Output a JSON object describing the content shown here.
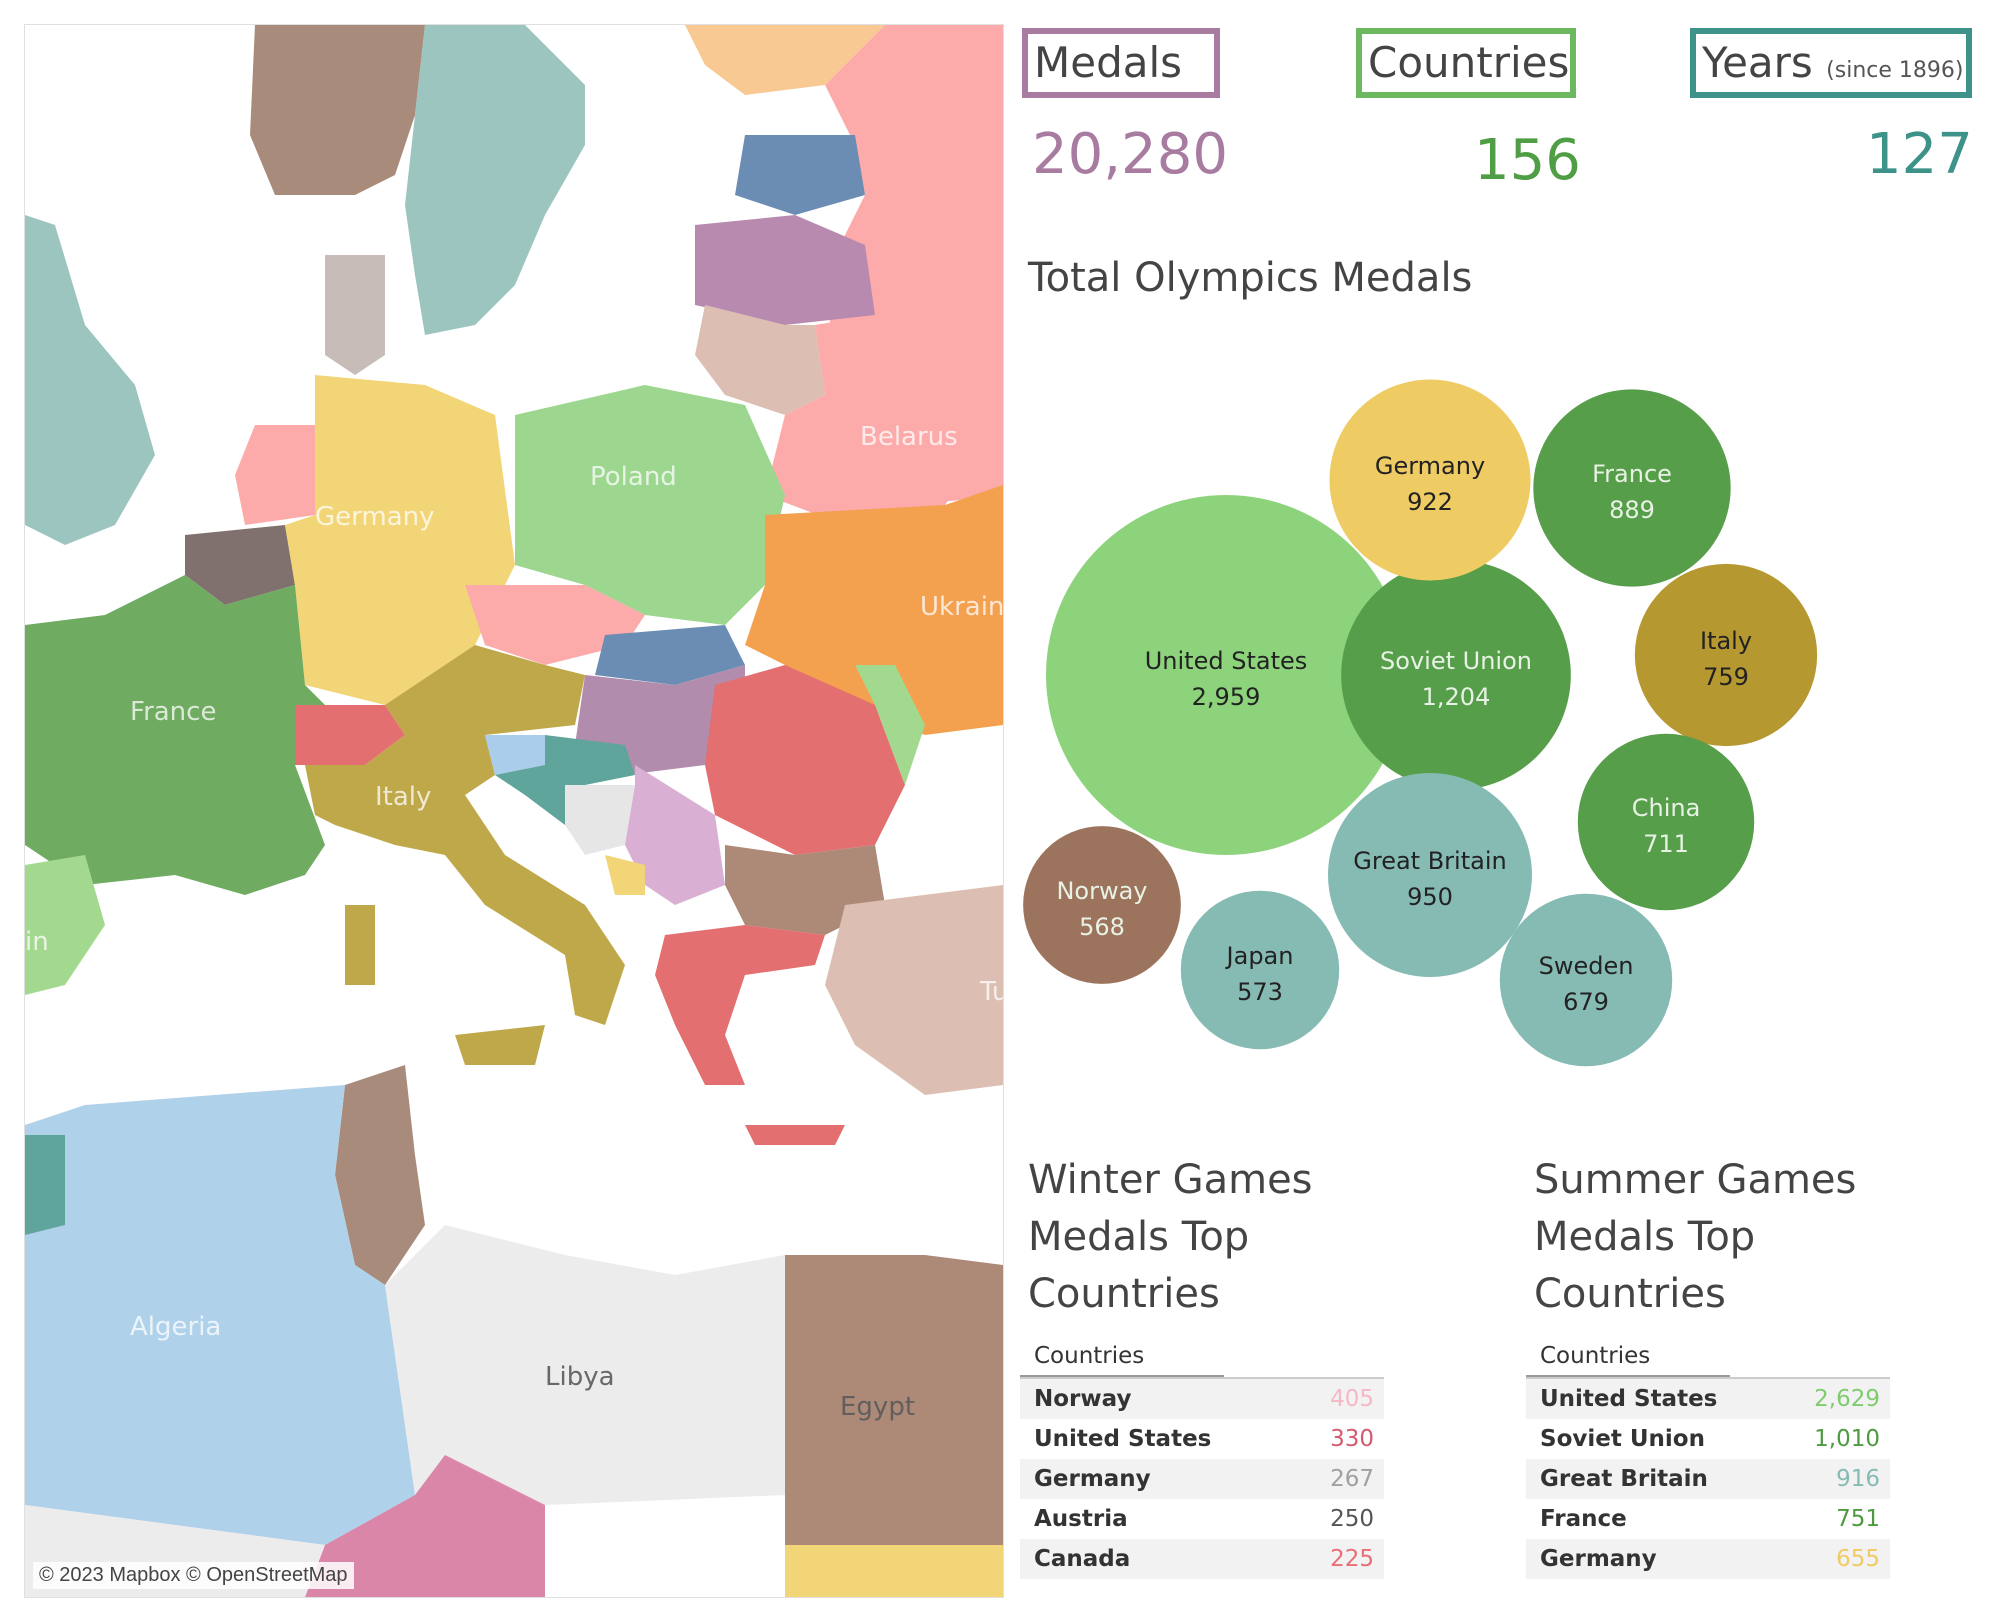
{
  "kpis": {
    "medals": {
      "label": "Medals",
      "value": "20,280",
      "color": "#a87ba0"
    },
    "countries": {
      "label": "Countries",
      "value": "156",
      "color": "#6bb85f"
    },
    "years": {
      "label": "Years",
      "note": "(since 1896)",
      "value": "127",
      "color": "#3d9289"
    }
  },
  "map": {
    "credit": "© 2023 Mapbox © OpenStreetMap",
    "labels": [
      "Belarus",
      "Poland",
      "Germany",
      "Ukrain",
      "France",
      "Italy",
      "in",
      "Tu",
      "Algeria",
      "Libya",
      "Egypt"
    ]
  },
  "bubble_title": "Total Olympics Medals",
  "chart_data": [
    {
      "type": "bubble",
      "title": "Total Olympics Medals",
      "categories": [
        "United States",
        "Soviet Union",
        "Great Britain",
        "Germany",
        "France",
        "Italy",
        "China",
        "Sweden",
        "Japan",
        "Norway"
      ],
      "values": [
        2959,
        1204,
        950,
        922,
        889,
        759,
        711,
        679,
        573,
        568
      ],
      "labels": [
        "2,959",
        "1,204",
        "950",
        "922",
        "889",
        "759",
        "711",
        "679",
        "573",
        "568"
      ],
      "colors": [
        "#8dd37c",
        "#569e4a",
        "#86bbb4",
        "#efcb63",
        "#569e4a",
        "#b69831",
        "#569e4a",
        "#86bbb4",
        "#86bbb4",
        "#9c735c"
      ]
    },
    {
      "type": "table",
      "title": "Winter Games Medals Top Countries",
      "column": "Countries",
      "categories": [
        "Norway",
        "United States",
        "Germany",
        "Austria",
        "Canada"
      ],
      "values": [
        405,
        330,
        267,
        250,
        225
      ],
      "labels": [
        "405",
        "330",
        "267",
        "250",
        "225"
      ],
      "colors": [
        "#f4b8c6",
        "#d45a6e",
        "#a0a0a0",
        "#555555",
        "#e86f75"
      ]
    },
    {
      "type": "table",
      "title": "Summer Games Medals Top Countries",
      "column": "Countries",
      "categories": [
        "United States",
        "Soviet Union",
        "Great Britain",
        "France",
        "Germany"
      ],
      "values": [
        2629,
        1010,
        916,
        751,
        655
      ],
      "labels": [
        "2,629",
        "1,010",
        "916",
        "751",
        "655"
      ],
      "colors": [
        "#7fcc6f",
        "#4e9a40",
        "#86bbb4",
        "#4e9a40",
        "#efcb63"
      ]
    }
  ]
}
